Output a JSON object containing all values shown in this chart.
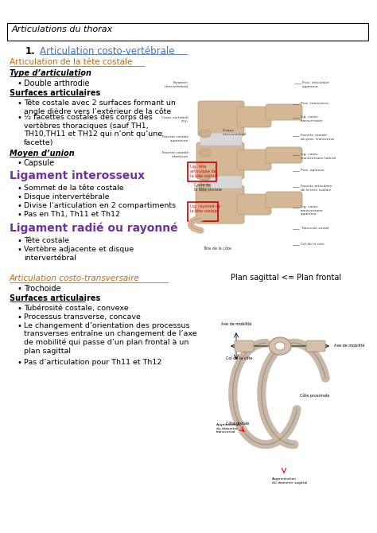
{
  "title_box": "Articulations du thorax",
  "section1_number": "1.",
  "section1_title": "Articulation costo-vertébrale ",
  "subsection1": "Articulation de la tête costale ",
  "sub_sub1": "Type d’articulation ",
  "bullet1": "Double arthrodie",
  "sub_sub2": "Surfaces articulaires ",
  "bullet2a": "Tête costale avec 2 surfaces formant un\nangle dièdre vers l’extérieur de la côte",
  "bullet2b": "½ facettes costales des corps des\nvertèbres thoraciques (sauf TH1,\nTH10,TH11 et TH12 qui n’ont qu’une\nfacette)",
  "sub_sub3": "Moyen d’union ",
  "bullet3": "Capsule",
  "section2_title": "Ligament interosseux",
  "bullet4a": "Sommet de la tête costale",
  "bullet4b": "Disque intervertébrale",
  "bullet4c": "Divise l’articulation en 2 compartiments",
  "bullet4d": "Pas en Th1, Th11 et Th12",
  "section3_title": "Ligament radié ou rayonné",
  "bullet5a": "Tête costale",
  "bullet5b": "Vertèbre adjacente et disque\nintervertébral",
  "subsection2": "Articulation costo-transversaire ",
  "bullet6": "Trochoide",
  "sub_sub4": "Surfaces articulaires ",
  "bullet7a": "Tubérosité costale, convexe",
  "bullet7b": "Processus transverse, concave",
  "bullet7c": "Le changement d’orientation des processus\ntransverses entraîne un changement de l’axe\nde mobilité qui passe d’un plan frontal à un\nplan sagittal",
  "bullet7d": "Pas d’articulation pour Th11 et Th12",
  "plan_label": "Plan sagittal <= Plan frontal",
  "bg_color": "#ffffff",
  "text_color": "#000000",
  "link_color": "#4472c4",
  "orange_color": "#cc6600",
  "purple_color": "#7030a0",
  "bone_color": "#d4b896",
  "bone_dark": "#b8956e",
  "bone_light": "#e8d5b8",
  "ligament_color": "#c8c8c8"
}
